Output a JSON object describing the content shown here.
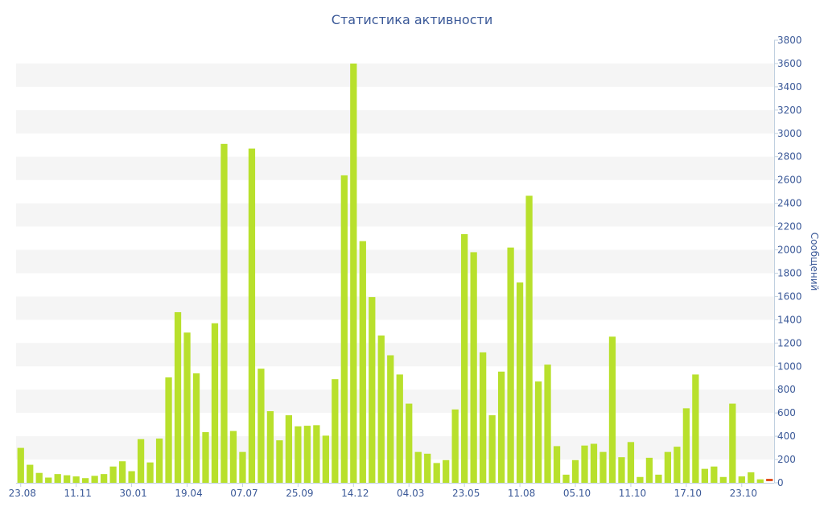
{
  "chart_data": {
    "type": "bar",
    "title": "Статистика активности",
    "ylabel": "Сообщений",
    "xlabel": "",
    "ylim": [
      0,
      3800
    ],
    "y_ticks": [
      0,
      200,
      400,
      600,
      800,
      1000,
      1200,
      1400,
      1600,
      1800,
      2000,
      2200,
      2400,
      2600,
      2800,
      3000,
      3200,
      3400,
      3600,
      3800
    ],
    "y_axis_side": "right",
    "grid": "alternating bands",
    "x_ticks": [
      {
        "index": 0,
        "label": "23.08"
      },
      {
        "index": 6,
        "label": "11.11"
      },
      {
        "index": 12,
        "label": "30.01"
      },
      {
        "index": 18,
        "label": "19.04"
      },
      {
        "index": 24,
        "label": "07.07"
      },
      {
        "index": 30,
        "label": "25.09"
      },
      {
        "index": 36,
        "label": "14.12"
      },
      {
        "index": 42,
        "label": "04.03"
      },
      {
        "index": 48,
        "label": "23.05"
      },
      {
        "index": 54,
        "label": "11.08"
      },
      {
        "index": 60,
        "label": "05.10"
      },
      {
        "index": 66,
        "label": "11.10"
      },
      {
        "index": 72,
        "label": "17.10"
      },
      {
        "index": 78,
        "label": "23.10"
      }
    ],
    "series": [
      {
        "color": "#b8e02c",
        "values": [
          300,
          155,
          85,
          45,
          75,
          65,
          55,
          40,
          60,
          75,
          140,
          185,
          100,
          375,
          175,
          380,
          905,
          1465,
          1290,
          940,
          435,
          1370,
          2910,
          445,
          265,
          2870,
          980,
          615,
          365,
          580,
          485,
          490,
          495,
          405,
          890,
          2640,
          3600,
          2075,
          1595,
          1265,
          1095,
          930,
          680,
          265,
          250,
          170,
          195,
          630,
          2135,
          1980,
          1120,
          580,
          955,
          2020,
          1720,
          2465,
          870,
          1015,
          315,
          70,
          195,
          320,
          335,
          265,
          1255,
          220,
          350,
          50,
          215,
          70,
          265,
          310,
          640,
          930,
          120,
          140,
          50,
          680,
          55,
          90,
          30,
          0
        ]
      }
    ],
    "last_bar_highlight_color": "#e05020"
  }
}
